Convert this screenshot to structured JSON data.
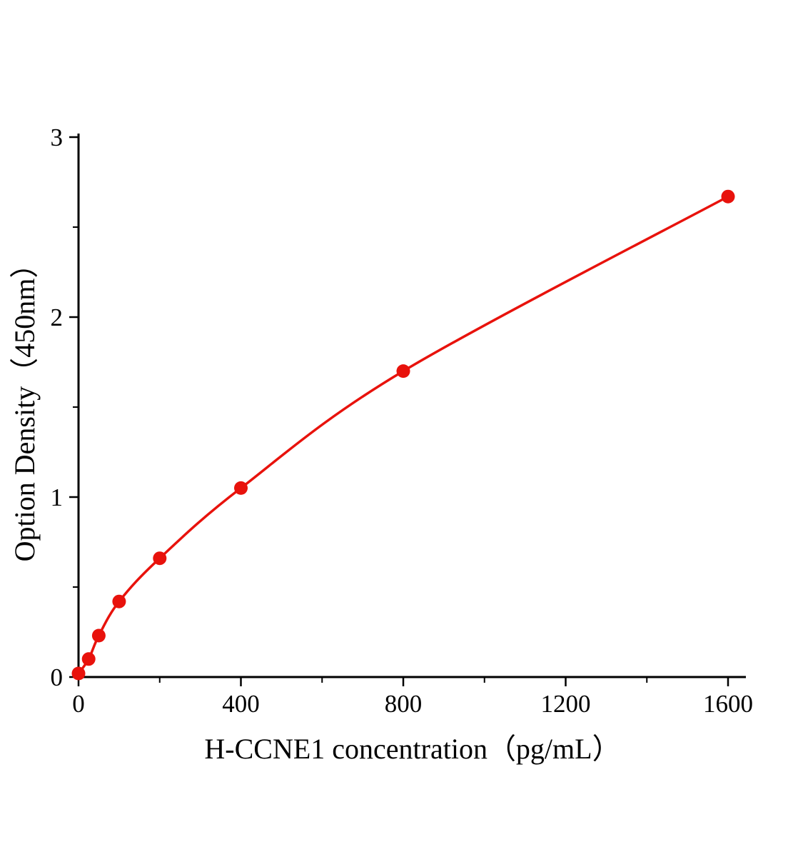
{
  "chart_data": {
    "type": "line",
    "title": "",
    "xlabel": "H-CCNE1 concentration（pg/mL）",
    "ylabel": "Option Density（450nm）",
    "x": [
      0,
      25,
      50,
      100,
      200,
      400,
      800,
      1600
    ],
    "y": [
      0.02,
      0.1,
      0.23,
      0.42,
      0.66,
      1.05,
      1.7,
      2.67
    ],
    "xlim": [
      0,
      1600
    ],
    "ylim": [
      0,
      3
    ],
    "x_major_ticks": [
      0,
      400,
      800,
      1200,
      1600
    ],
    "x_tick_labels": [
      "0",
      "400",
      "800",
      "1200",
      "1600"
    ],
    "x_minor_ticks": [
      200,
      600,
      1000,
      1400
    ],
    "y_major_ticks": [
      0,
      1,
      2,
      3
    ],
    "y_tick_labels": [
      "0",
      "1",
      "2",
      "3"
    ],
    "y_minor_ticks": [
      0.5,
      1.5,
      2.5
    ],
    "grid": "off",
    "legend": "none",
    "series_color": "#e8120c",
    "marker": "circle",
    "marker_size": 9.5,
    "axis_color": "#000000"
  }
}
